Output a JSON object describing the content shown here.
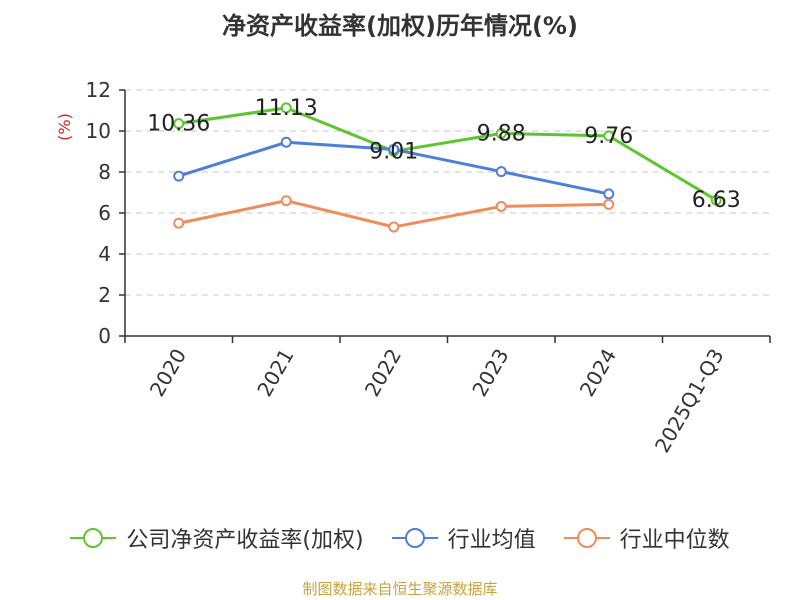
{
  "chart_data": {
    "type": "line",
    "title": "净资产收益率(加权)历年情况(%)",
    "ylabel": "(%)",
    "xlabel": "",
    "categories": [
      "2020",
      "2021",
      "2022",
      "2023",
      "2024",
      "2025Q1-Q3"
    ],
    "ylim": [
      0,
      12
    ],
    "yticks": [
      0,
      2,
      4,
      6,
      8,
      10,
      12
    ],
    "grid": true,
    "legend_position": "bottom",
    "series": [
      {
        "name": "公司净资产收益率(加权)",
        "color": "#5cc62e",
        "values": [
          10.36,
          11.13,
          9.01,
          9.88,
          9.76,
          6.63
        ],
        "labels": [
          "10.36",
          "11.13",
          "9.01",
          "9.88",
          "9.76",
          "6.63"
        ]
      },
      {
        "name": "行业均值",
        "color": "#4d7fd9",
        "values": [
          7.8,
          9.45,
          9.1,
          8.02,
          6.93,
          null
        ]
      },
      {
        "name": "行业中位数",
        "color": "#f08c5a",
        "values": [
          5.5,
          6.6,
          5.32,
          6.32,
          6.42,
          null
        ]
      }
    ],
    "source_note": "制图数据来自恒生聚源数据库"
  }
}
